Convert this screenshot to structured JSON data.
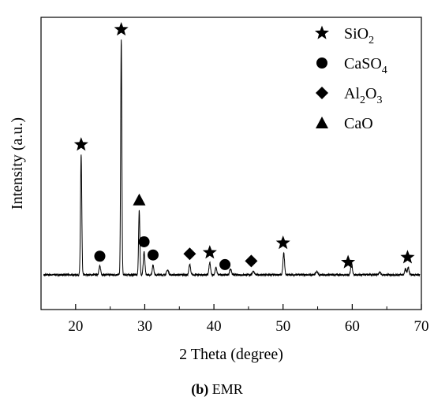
{
  "chart_data": {
    "type": "line",
    "title": "",
    "xlabel": "2 Theta (degree)",
    "ylabel": "Intensity (a.u.)",
    "xlim": [
      15,
      70
    ],
    "xticks": [
      20,
      30,
      40,
      50,
      60,
      70
    ],
    "y_ticks_shown": false,
    "caption": {
      "bold": "(b)",
      "text": " EMR"
    },
    "pattern": {
      "baseline": 4,
      "noise": 0.8,
      "seed": 7,
      "peaks": [
        {
          "x": 20.8,
          "y": 100,
          "w": 0.13
        },
        {
          "x": 23.5,
          "y": 7,
          "w": 0.18
        },
        {
          "x": 26.6,
          "y": 196,
          "w": 0.12
        },
        {
          "x": 29.2,
          "y": 54,
          "w": 0.13
        },
        {
          "x": 29.9,
          "y": 19,
          "w": 0.16
        },
        {
          "x": 31.2,
          "y": 8,
          "w": 0.16
        },
        {
          "x": 33.3,
          "y": 4,
          "w": 0.2
        },
        {
          "x": 36.5,
          "y": 9,
          "w": 0.16
        },
        {
          "x": 39.4,
          "y": 10,
          "w": 0.16
        },
        {
          "x": 40.3,
          "y": 6,
          "w": 0.16
        },
        {
          "x": 42.4,
          "y": 5,
          "w": 0.18
        },
        {
          "x": 45.7,
          "y": 3,
          "w": 0.2
        },
        {
          "x": 50.1,
          "y": 18,
          "w": 0.16
        },
        {
          "x": 54.9,
          "y": 3,
          "w": 0.2
        },
        {
          "x": 59.9,
          "y": 10,
          "w": 0.17
        },
        {
          "x": 64.0,
          "y": 2,
          "w": 0.2
        },
        {
          "x": 67.7,
          "y": 5,
          "w": 0.16
        },
        {
          "x": 68.1,
          "y": 6,
          "w": 0.16
        }
      ]
    },
    "legend": [
      {
        "symbol": "star",
        "name": "SiO",
        "sub": "2",
        "tail": ""
      },
      {
        "symbol": "circle",
        "name": "CaSO",
        "sub": "4",
        "tail": ""
      },
      {
        "symbol": "diamond",
        "name": "Al",
        "sub": "2",
        "tail": "O",
        "sub2": "3"
      },
      {
        "symbol": "triangle",
        "name": "CaO",
        "sub": "",
        "tail": ""
      }
    ],
    "markers": [
      {
        "symbol": "star",
        "x": 20.8
      },
      {
        "symbol": "star",
        "x": 26.6
      },
      {
        "symbol": "circle",
        "x": 23.5
      },
      {
        "symbol": "triangle",
        "x": 29.2
      },
      {
        "symbol": "circle",
        "x": 29.9
      },
      {
        "symbol": "circle",
        "x": 31.2
      },
      {
        "symbol": "diamond",
        "x": 36.5
      },
      {
        "symbol": "star",
        "x": 39.4
      },
      {
        "symbol": "circle",
        "x": 41.6
      },
      {
        "symbol": "diamond",
        "x": 45.4
      },
      {
        "symbol": "star",
        "x": 50.0
      },
      {
        "symbol": "star",
        "x": 59.4
      },
      {
        "symbol": "star",
        "x": 68.0
      }
    ]
  }
}
